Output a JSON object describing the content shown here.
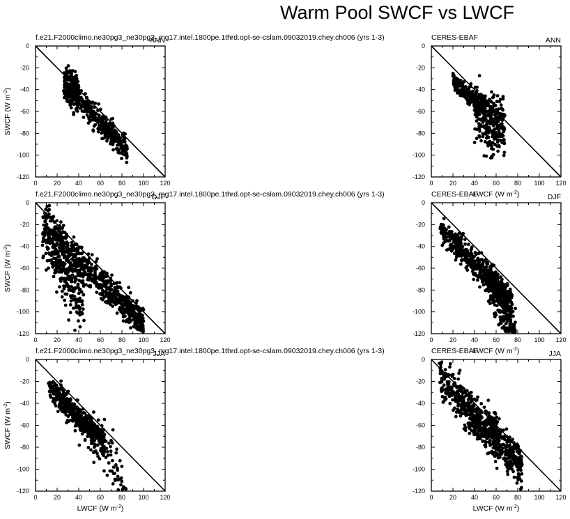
{
  "figure": {
    "title": "Warm Pool SWCF vs LWCF",
    "x_unit_superscript": "-2",
    "y_unit_superscript": "-2"
  },
  "style": {
    "marker_color": "#000000",
    "line_color": "#000000",
    "background": "#ffffff"
  },
  "chart_data": [
    {
      "type": "scatter",
      "id": "model-ann",
      "title_left": "f.e21.F2000climo.ne30pg3_ne30pg3_mg17.intel.1800pe.1thrd.opt-se-cslam.09032019.chey.ch006 (yrs 1-3)",
      "title_right": "ANN",
      "xlabel": "",
      "ylabel": "SWCF (W m",
      "xlim": [
        0,
        120
      ],
      "ylim": [
        -120,
        0
      ],
      "xticks": [
        0,
        20,
        40,
        60,
        80,
        100,
        120
      ],
      "yticks": [
        0,
        -20,
        -40,
        -60,
        -80,
        -100,
        -120
      ],
      "reference_line": {
        "from": [
          0,
          0
        ],
        "to": [
          120,
          -120
        ]
      },
      "clouds": [
        {
          "n": 420,
          "x": [
            26,
            85
          ],
          "slope": -1.06,
          "intercept": -6,
          "spread": 5.5,
          "shape": "flat"
        },
        {
          "n": 160,
          "x": [
            26,
            40
          ],
          "slope": -0.5,
          "intercept": -22,
          "spread": 10,
          "shape": "flat"
        }
      ]
    },
    {
      "type": "scatter",
      "id": "obs-ann",
      "title_left": "CERES-EBAF",
      "title_right": "ANN",
      "xlabel": "LWCF (W m",
      "ylabel": "",
      "xlim": [
        0,
        120
      ],
      "ylim": [
        -120,
        0
      ],
      "xticks": [
        0,
        20,
        40,
        60,
        80,
        100,
        120
      ],
      "yticks": [
        0,
        -20,
        -40,
        -60,
        -80,
        -100,
        -120
      ],
      "reference_line": {
        "from": [
          0,
          0
        ],
        "to": [
          120,
          -120
        ]
      },
      "clouds": [
        {
          "n": 260,
          "x": [
            20,
            50
          ],
          "slope": -0.8,
          "intercept": -17,
          "spread": 4,
          "shape": "flat"
        },
        {
          "n": 300,
          "x": [
            40,
            68
          ],
          "slope": -0.6,
          "intercept": -36,
          "spread": 13,
          "shape": "flat"
        }
      ]
    },
    {
      "type": "scatter",
      "id": "model-djf",
      "title_left": "f.e21.F2000climo.ne30pg3_ne30pg3_mg17.intel.1800pe.1thrd.opt-se-cslam.09032019.chey.ch006 (yrs 1-3)",
      "title_right": "DJF",
      "xlabel": "",
      "ylabel": "SWCF (W m",
      "xlim": [
        0,
        120
      ],
      "ylim": [
        -120,
        0
      ],
      "xticks": [
        0,
        20,
        40,
        60,
        80,
        100,
        120
      ],
      "yticks": [
        0,
        -20,
        -40,
        -60,
        -80,
        -100,
        -120
      ],
      "reference_line": {
        "from": [
          0,
          0
        ],
        "to": [
          120,
          -120
        ]
      },
      "clouds": [
        {
          "n": 650,
          "x": [
            6,
            100
          ],
          "slope": -1.0,
          "intercept": -12,
          "spread": 7,
          "shape": "flat"
        },
        {
          "n": 280,
          "x": [
            6,
            45
          ],
          "slope": -1.7,
          "intercept": -15,
          "spread": 14,
          "shape": "flat"
        }
      ]
    },
    {
      "type": "scatter",
      "id": "obs-djf",
      "title_left": "CERES-EBAF",
      "title_right": "DJF",
      "xlabel": "LWCF (W m",
      "ylabel": "",
      "xlim": [
        0,
        120
      ],
      "ylim": [
        -120,
        0
      ],
      "xticks": [
        0,
        20,
        40,
        60,
        80,
        100,
        120
      ],
      "yticks": [
        0,
        -20,
        -40,
        -60,
        -80,
        -100,
        -120
      ],
      "reference_line": {
        "from": [
          0,
          0
        ],
        "to": [
          120,
          -120
        ]
      },
      "clouds": [
        {
          "n": 560,
          "x": [
            8,
            75
          ],
          "slope": -1.0,
          "intercept": -16,
          "spread": 6,
          "shape": "flat"
        },
        {
          "n": 220,
          "x": [
            50,
            78
          ],
          "slope": -1.9,
          "intercept": 30,
          "spread": 10,
          "shape": "flat"
        }
      ]
    },
    {
      "type": "scatter",
      "id": "model-jja",
      "title_left": "f.e21.F2000climo.ne30pg3_ne30pg3_mg17.intel.1800pe.1thrd.opt-se-cslam.09032019.chey.ch006 (yrs 1-3)",
      "title_right": "JJA",
      "xlabel": "LWCF (W m",
      "ylabel": "SWCF (W m",
      "xlim": [
        0,
        120
      ],
      "ylim": [
        -120,
        0
      ],
      "xticks": [
        0,
        20,
        40,
        60,
        80,
        100,
        120
      ],
      "yticks": [
        0,
        -20,
        -40,
        -60,
        -80,
        -100,
        -120
      ],
      "reference_line": {
        "from": [
          0,
          0
        ],
        "to": [
          120,
          -120
        ]
      },
      "clouds": [
        {
          "n": 480,
          "x": [
            12,
            64
          ],
          "slope": -0.95,
          "intercept": -14,
          "spread": 5.5,
          "shape": "flat"
        },
        {
          "n": 90,
          "x": [
            40,
            84
          ],
          "slope": -1.3,
          "intercept": -5,
          "spread": 12,
          "shape": "flat"
        }
      ]
    },
    {
      "type": "scatter",
      "id": "obs-jja",
      "title_left": "CERES-EBAF",
      "title_right": "JJA",
      "xlabel": "LWCF (W m",
      "ylabel": "",
      "xlim": [
        0,
        120
      ],
      "ylim": [
        -120,
        0
      ],
      "xticks": [
        0,
        20,
        40,
        60,
        80,
        100,
        120
      ],
      "yticks": [
        0,
        -20,
        -40,
        -60,
        -80,
        -100,
        -120
      ],
      "reference_line": {
        "from": [
          0,
          0
        ],
        "to": [
          120,
          -120
        ]
      },
      "clouds": [
        {
          "n": 620,
          "x": [
            7,
            84
          ],
          "slope": -1.1,
          "intercept": -7,
          "spread": 9,
          "shape": "flat"
        },
        {
          "n": 120,
          "x": [
            35,
            62
          ],
          "slope": -0.3,
          "intercept": -45,
          "spread": 8,
          "shape": "flat"
        }
      ]
    }
  ]
}
